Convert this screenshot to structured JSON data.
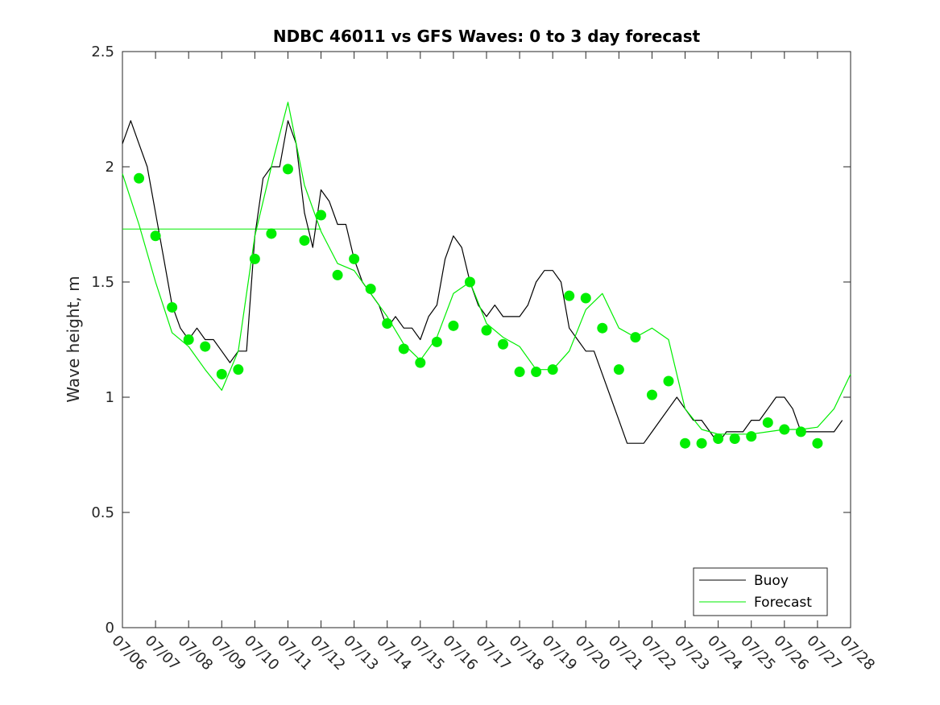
{
  "chart_data": {
    "type": "line",
    "title": "NDBC 46011 vs GFS Waves: 0 to 3 day forecast",
    "xlabel": "",
    "ylabel": "Wave height, m",
    "xlim": [
      "07/06",
      "07/28"
    ],
    "ylim": [
      0,
      2.5
    ],
    "x_tick_labels": [
      "07/06",
      "07/07",
      "07/08",
      "07/09",
      "07/10",
      "07/11",
      "07/12",
      "07/13",
      "07/14",
      "07/15",
      "07/16",
      "07/17",
      "07/18",
      "07/19",
      "07/20",
      "07/21",
      "07/22",
      "07/23",
      "07/24",
      "07/25",
      "07/26",
      "07/27",
      "07/28"
    ],
    "y_ticks": [
      0,
      0.5,
      1,
      1.5,
      2,
      2.5
    ],
    "y_tick_labels": [
      "0",
      "0.5",
      "1",
      "1.5",
      "2",
      "2.5"
    ],
    "grid": false,
    "legend": {
      "position": "bottom-right",
      "entries": [
        "Buoy",
        "Forecast"
      ]
    },
    "colors": {
      "buoy": "#000000",
      "forecast": "#00ee00",
      "axis": "#262626"
    },
    "series": [
      {
        "name": "Buoy",
        "style": "line",
        "days_since_0706": [
          0,
          0.25,
          0.5,
          0.75,
          1,
          1.25,
          1.5,
          1.75,
          2,
          2.25,
          2.5,
          2.75,
          3,
          3.25,
          3.5,
          3.75,
          4,
          4.25,
          4.5,
          4.75,
          5,
          5.25,
          5.5,
          5.75,
          6,
          6.25,
          6.5,
          6.75,
          7,
          7.25,
          7.5,
          7.75,
          8,
          8.25,
          8.5,
          8.75,
          9,
          9.25,
          9.5,
          9.75,
          10,
          10.25,
          10.5,
          10.75,
          11,
          11.25,
          11.5,
          11.75,
          12,
          12.25,
          12.5,
          12.75,
          13,
          13.25,
          13.5,
          13.75,
          14,
          14.25,
          14.5,
          14.75,
          15,
          15.25,
          15.5,
          15.75,
          16,
          16.25,
          16.5,
          16.75,
          17,
          17.25,
          17.5,
          17.75,
          18,
          18.25,
          18.5,
          18.75,
          19,
          19.25,
          19.5,
          19.75,
          20,
          20.25,
          20.5,
          20.75,
          21,
          21.25,
          21.5,
          21.75
        ],
        "values": [
          2.1,
          2.2,
          2.1,
          2.0,
          1.8,
          1.6,
          1.4,
          1.3,
          1.25,
          1.3,
          1.25,
          1.25,
          1.2,
          1.15,
          1.2,
          1.2,
          1.7,
          1.95,
          2.0,
          2.0,
          2.2,
          2.1,
          1.8,
          1.65,
          1.9,
          1.85,
          1.75,
          1.75,
          1.6,
          1.5,
          1.45,
          1.4,
          1.3,
          1.35,
          1.3,
          1.3,
          1.25,
          1.35,
          1.4,
          1.6,
          1.7,
          1.65,
          1.5,
          1.4,
          1.35,
          1.4,
          1.35,
          1.35,
          1.35,
          1.4,
          1.5,
          1.55,
          1.55,
          1.5,
          1.3,
          1.25,
          1.2,
          1.2,
          1.1,
          1.0,
          0.9,
          0.8,
          0.8,
          0.8,
          0.85,
          0.9,
          0.95,
          1.0,
          0.95,
          0.9,
          0.9,
          0.85,
          0.8,
          0.85,
          0.85,
          0.85,
          0.9,
          0.9,
          0.95,
          1.0,
          1.0,
          0.95,
          0.85,
          0.85,
          0.85,
          0.85,
          0.85,
          0.9
        ]
      },
      {
        "name": "Forecast",
        "style": "line",
        "days_since_0706": [
          0,
          0.5,
          1,
          1.5,
          2,
          2.5,
          3,
          3.5,
          4,
          4.5,
          5,
          5.5,
          6,
          6.5,
          7,
          7.5,
          8,
          8.5,
          9,
          9.5,
          10,
          10.5,
          11,
          11.5,
          12,
          12.5,
          13,
          13.5,
          14,
          14.5,
          15,
          15.5,
          16,
          16.5,
          17,
          17.5,
          18,
          18.5,
          19,
          19.5,
          20,
          20.5,
          21,
          21.5,
          22
        ],
        "values": [
          1.97,
          1.75,
          1.5,
          1.28,
          1.22,
          1.12,
          1.03,
          1.2,
          1.7,
          2.0,
          2.28,
          1.92,
          1.72,
          1.58,
          1.55,
          1.45,
          1.35,
          1.23,
          1.16,
          1.26,
          1.45,
          1.5,
          1.32,
          1.26,
          1.22,
          1.12,
          1.12,
          1.2,
          1.38,
          1.45,
          1.3,
          1.26,
          1.3,
          1.25,
          0.95,
          0.86,
          0.84,
          0.84,
          0.84,
          0.85,
          0.86,
          0.86,
          0.87,
          0.95,
          1.1
        ]
      },
      {
        "name": "",
        "style": "markers",
        "days_since_0706": [
          0.5,
          1,
          1.5,
          2,
          2.5,
          3,
          3.5,
          4,
          4.5,
          5,
          5.5,
          6,
          6.5,
          7,
          7.5,
          8,
          8.5,
          9,
          9.5,
          10,
          10.5,
          11,
          11.5,
          12,
          12.5,
          13,
          13.5,
          14,
          14.5,
          15,
          15.5,
          16,
          16.5,
          17,
          17.5,
          18,
          18.5,
          19,
          19.5,
          20,
          20.5,
          21
        ],
        "values": [
          1.95,
          1.7,
          1.39,
          1.25,
          1.22,
          1.1,
          1.12,
          1.6,
          1.71,
          1.99,
          1.68,
          1.79,
          1.53,
          1.6,
          1.47,
          1.32,
          1.21,
          1.15,
          1.24,
          1.31,
          1.5,
          1.29,
          1.23,
          1.11,
          1.11,
          1.12,
          1.44,
          1.43,
          1.3,
          1.12,
          1.26,
          1.01,
          1.07,
          0.8,
          0.8,
          0.82,
          0.82,
          0.83,
          0.89,
          0.86,
          0.85,
          0.8
        ]
      }
    ],
    "annotations": [
      {
        "type": "hline",
        "value": 1.73,
        "x_start": "07/06",
        "x_end": "07/12"
      }
    ]
  }
}
